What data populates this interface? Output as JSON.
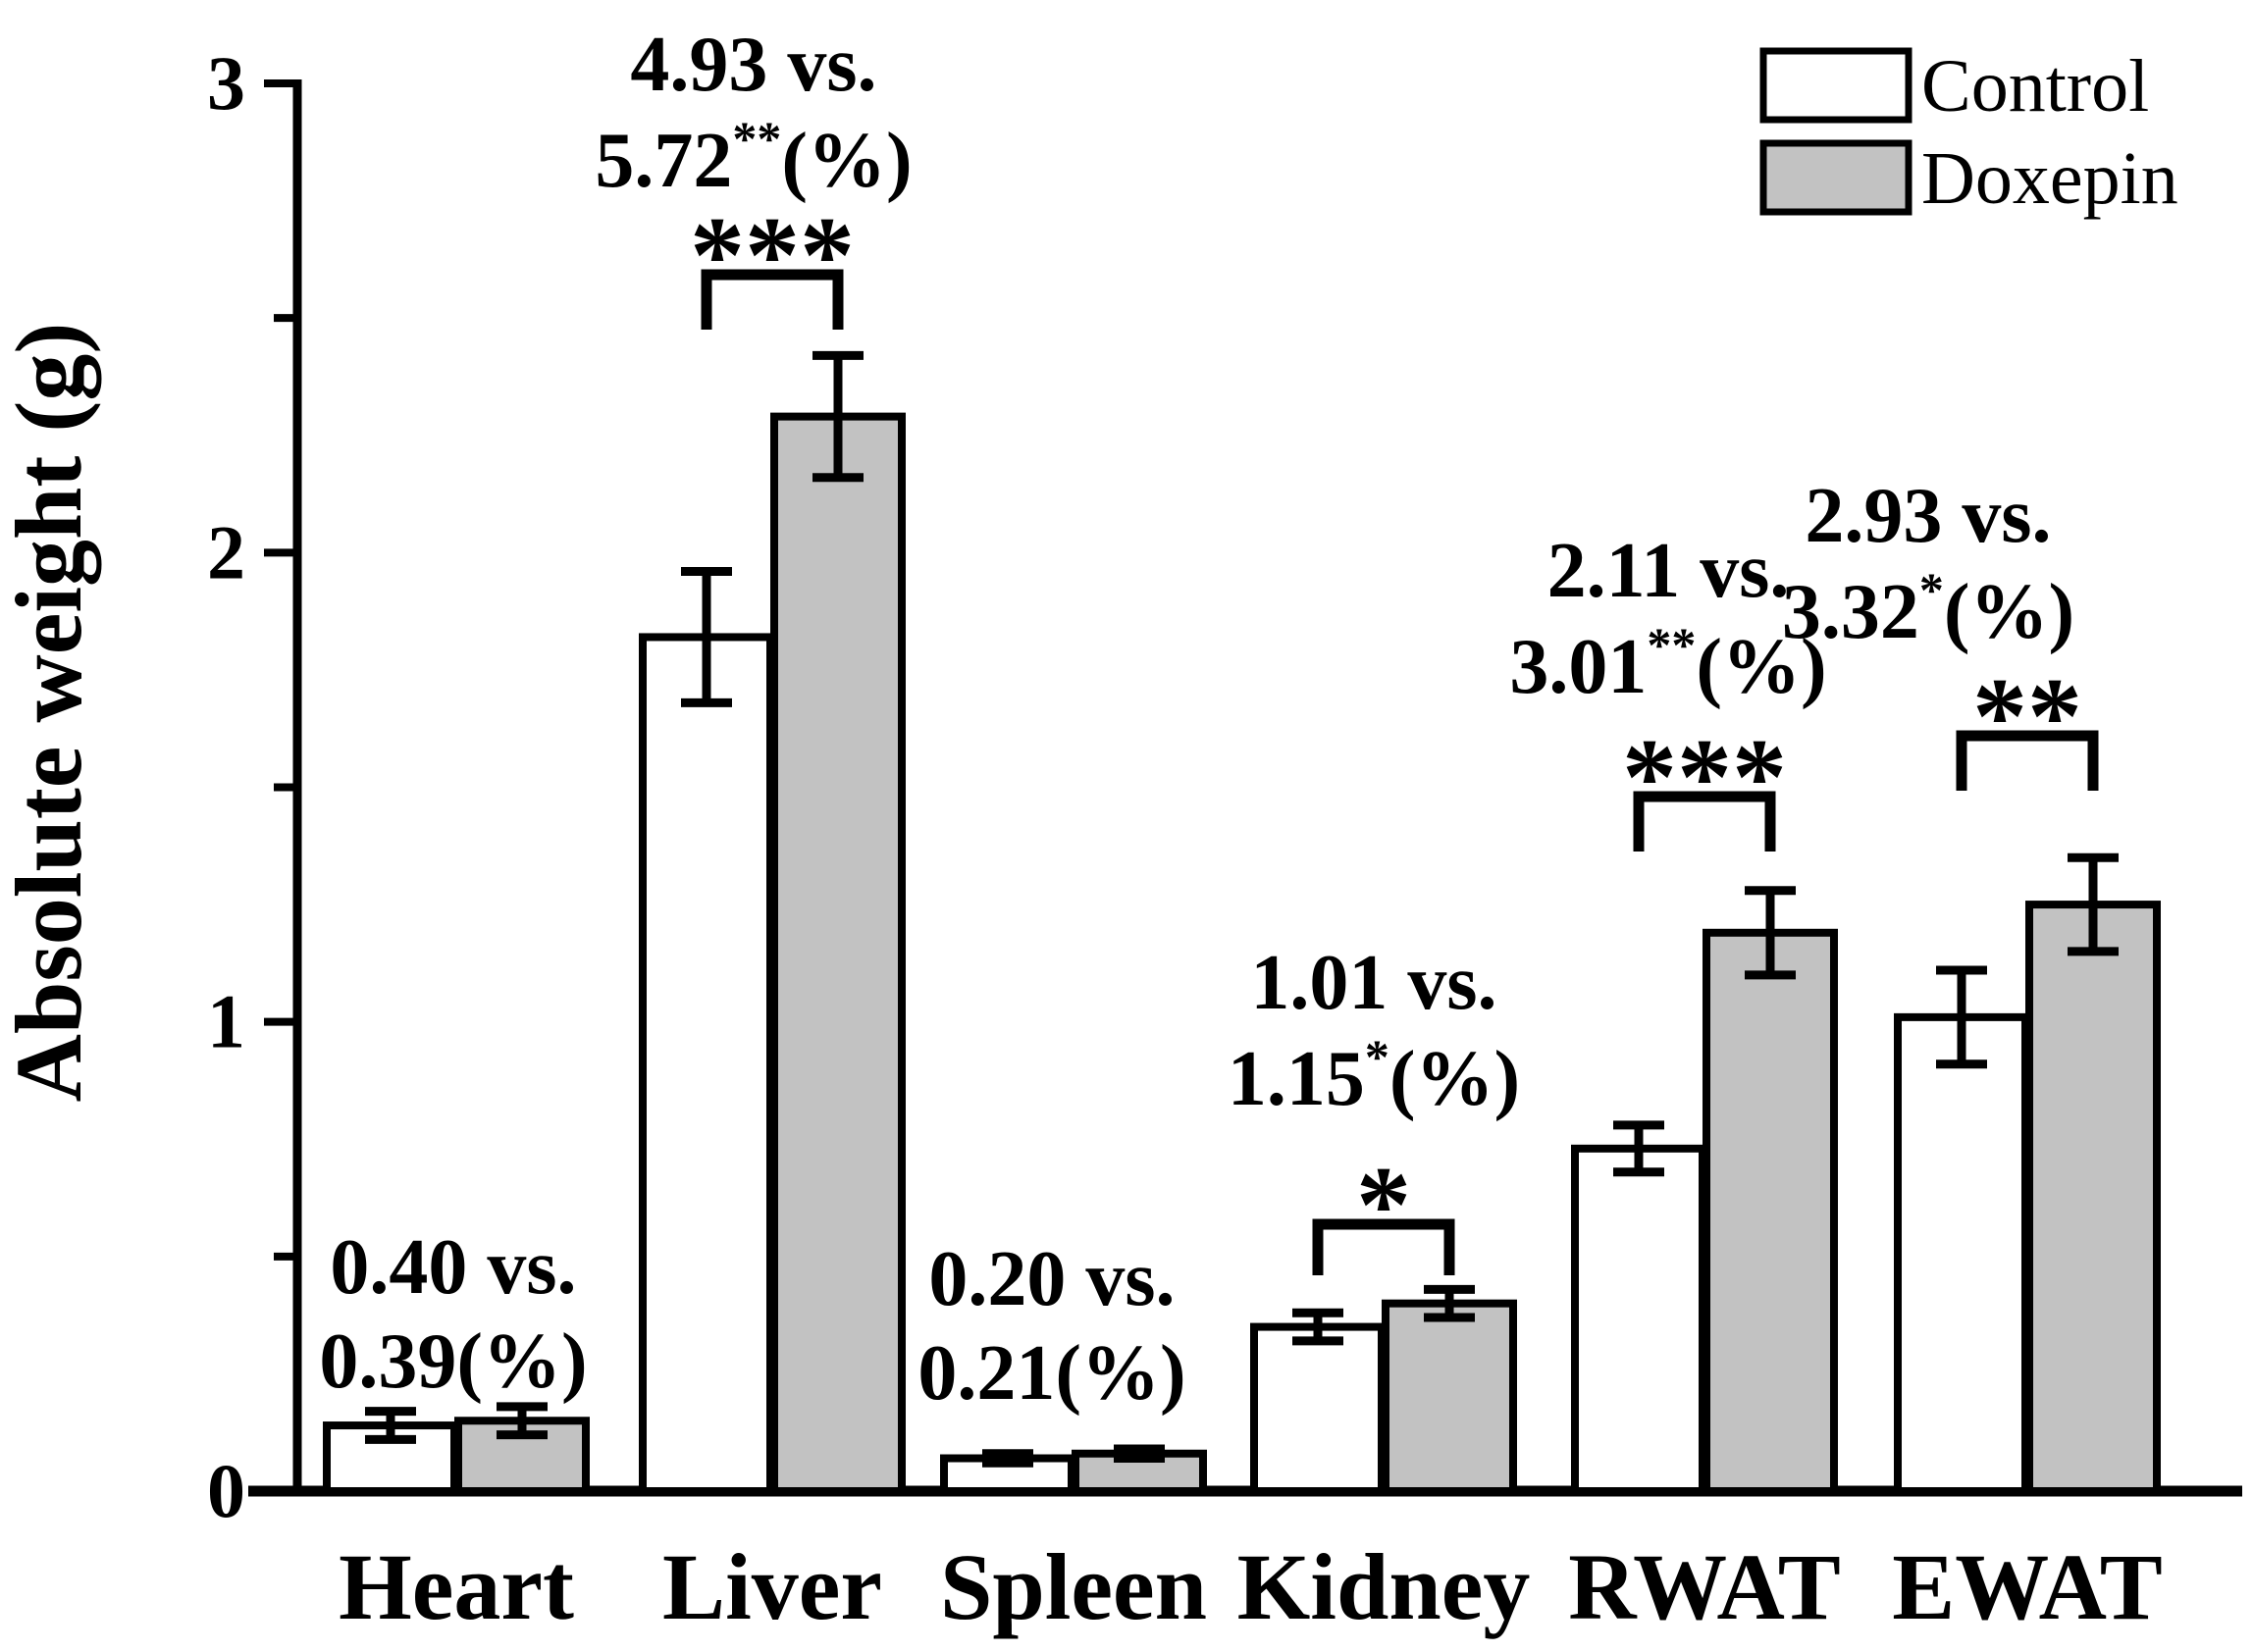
{
  "figure": {
    "background": "#ffffff",
    "ink": "#000000",
    "bar_fill_control": "#ffffff",
    "bar_fill_doxepin": "#c2c2c2"
  },
  "chart_data": {
    "type": "bar",
    "title": "",
    "xlabel": "",
    "ylabel": "Absolute weight (g)",
    "ylim": [
      0,
      3
    ],
    "yticks_major": [
      0,
      1,
      2,
      3
    ],
    "ytick_labels": [
      "0",
      "1",
      "2",
      "3"
    ],
    "yticks_minor": [
      0.5,
      1.5,
      2.5
    ],
    "grid": false,
    "legend_position": "top-right",
    "categories": [
      "Heart",
      "Liver",
      "Spleen",
      "Kidney",
      "RWAT",
      "EWAT"
    ],
    "series": [
      {
        "name": "Control",
        "fill": "#ffffff",
        "values": [
          0.14,
          1.82,
          0.07,
          0.35,
          0.73,
          1.01
        ],
        "errors": [
          0.03,
          0.14,
          0.01,
          0.03,
          0.05,
          0.1
        ]
      },
      {
        "name": "Doxepin",
        "fill": "#c2c2c2",
        "values": [
          0.15,
          2.29,
          0.08,
          0.4,
          1.19,
          1.25
        ],
        "errors": [
          0.03,
          0.13,
          0.01,
          0.03,
          0.09,
          0.1
        ]
      }
    ],
    "annotations": [
      {
        "category": "Heart",
        "line1": "0.40 vs.",
        "line2_value": "0.39",
        "line2_sup": "",
        "line2_suffix": "(%)",
        "stars": "",
        "bracket": false
      },
      {
        "category": "Liver",
        "line1": "4.93 vs.",
        "line2_value": "5.72",
        "line2_sup": "**",
        "line2_suffix": "(%)",
        "stars": "***",
        "bracket": true
      },
      {
        "category": "Spleen",
        "line1": "0.20 vs.",
        "line2_value": "0.21",
        "line2_sup": "",
        "line2_suffix": "(%)",
        "stars": "",
        "bracket": false
      },
      {
        "category": "Kidney",
        "line1": "1.01 vs.",
        "line2_value": "1.15",
        "line2_sup": "*",
        "line2_suffix": "(%)",
        "stars": "*",
        "bracket": true
      },
      {
        "category": "RWAT",
        "line1": "2.11 vs.",
        "line2_value": "3.01",
        "line2_sup": "**",
        "line2_suffix": "(%)",
        "stars": "***",
        "bracket": true
      },
      {
        "category": "EWAT",
        "line1": "2.93 vs.",
        "line2_value": "3.32",
        "line2_sup": "*",
        "line2_suffix": "(%)",
        "stars": "**",
        "bracket": true
      }
    ]
  }
}
